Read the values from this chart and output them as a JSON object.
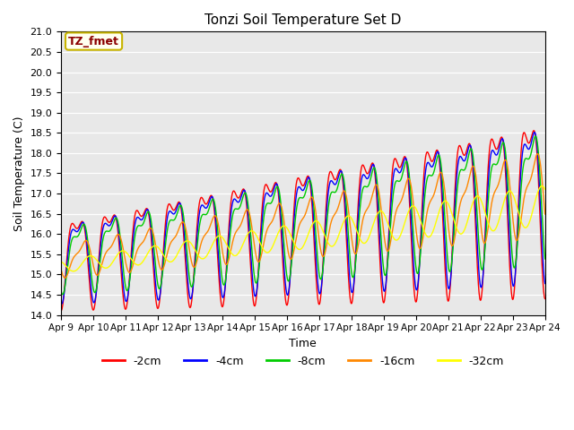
{
  "title": "Tonzi Soil Temperature Set D",
  "xlabel": "Time",
  "ylabel": "Soil Temperature (C)",
  "ylim": [
    14.0,
    21.0
  ],
  "yticks": [
    14.0,
    14.5,
    15.0,
    15.5,
    16.0,
    16.5,
    17.0,
    17.5,
    18.0,
    18.5,
    19.0,
    19.5,
    20.0,
    20.5,
    21.0
  ],
  "xtick_labels": [
    "Apr 9",
    "Apr 10",
    "Apr 11",
    "Apr 12",
    "Apr 13",
    "Apr 14",
    "Apr 15",
    "Apr 16",
    "Apr 17",
    "Apr 18",
    "Apr 19",
    "Apr 20",
    "Apr 21",
    "Apr 22",
    "Apr 23",
    "Apr 24"
  ],
  "series": [
    {
      "label": "-2cm",
      "color": "#ff0000"
    },
    {
      "label": "-4cm",
      "color": "#0000ff"
    },
    {
      "label": "-8cm",
      "color": "#00cc00"
    },
    {
      "label": "-16cm",
      "color": "#ff8800"
    },
    {
      "label": "-32cm",
      "color": "#ffff00"
    }
  ],
  "annotation_text": "TZ_fmet",
  "annotation_text_color": "#8b0000",
  "annotation_bg": "#fffff0",
  "annotation_edge": "#c8b400",
  "background_color": "#e8e8e8",
  "figsize": [
    6.4,
    4.8
  ],
  "dpi": 100,
  "n_days": 15,
  "points_per_day": 96
}
